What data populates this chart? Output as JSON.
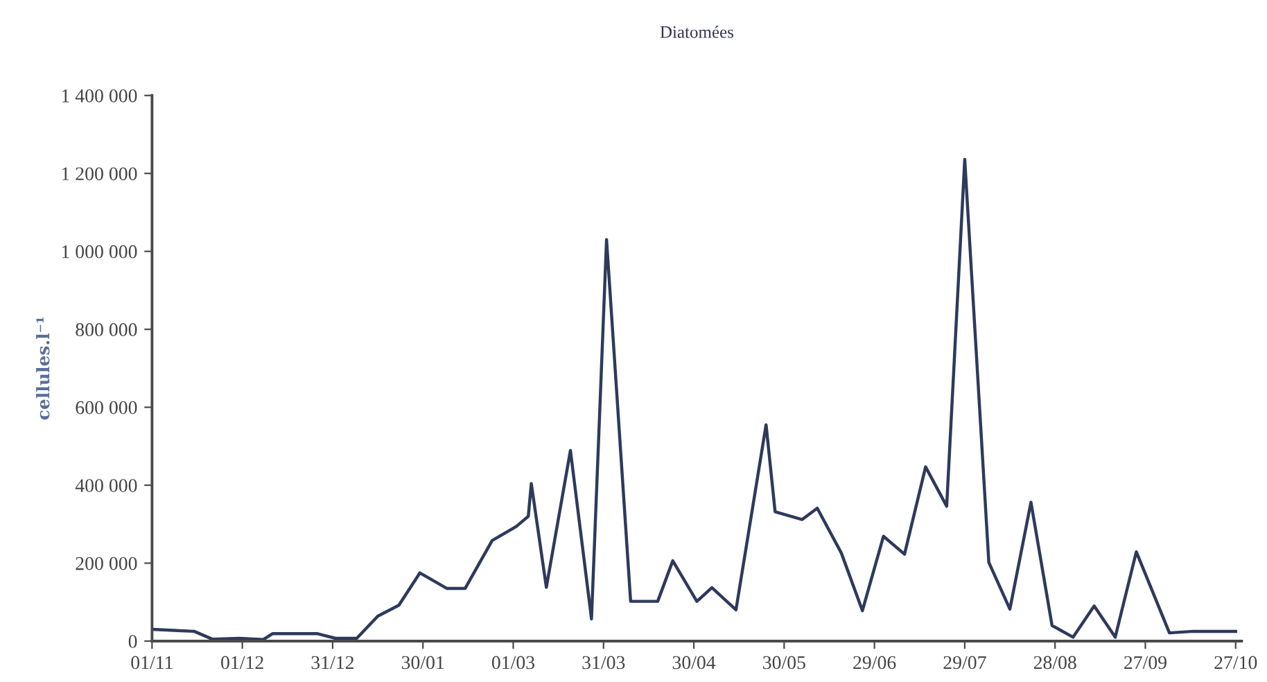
{
  "chart_data": {
    "type": "line",
    "title": "Diatomées",
    "ylabel": "cellules.l⁻¹",
    "x": [
      "2001-11-01",
      "2001-11-15",
      "2001-11-21",
      "2001-11-30",
      "2001-12-08",
      "2001-12-11",
      "2001-12-26",
      "2002-01-01",
      "2002-01-08",
      "2002-01-15",
      "2002-01-22",
      "2002-01-29",
      "2002-02-07",
      "2002-02-13",
      "2002-02-22",
      "2002-03-02",
      "2002-03-06",
      "2002-03-07",
      "2002-03-12",
      "2002-03-20",
      "2002-03-27",
      "2002-04-01",
      "2002-04-09",
      "2002-04-18",
      "2002-04-23",
      "2002-05-01",
      "2002-05-06",
      "2002-05-14",
      "2002-05-24",
      "2002-05-27",
      "2002-06-05",
      "2002-06-10",
      "2002-06-18",
      "2002-06-25",
      "2002-07-02",
      "2002-07-09",
      "2002-07-16",
      "2002-07-23",
      "2002-07-29",
      "2002-08-06",
      "2002-08-13",
      "2002-08-20",
      "2002-08-27",
      "2002-09-03",
      "2002-09-10",
      "2002-09-17",
      "2002-09-24",
      "2002-10-05",
      "2002-10-13",
      "2002-10-27"
    ],
    "series": [
      {
        "color": "#2e3a5c",
        "values": [
          30000,
          25000,
          5000,
          7000,
          4000,
          19000,
          19000,
          7000,
          7000,
          64000,
          92000,
          175000,
          135000,
          135000,
          258000,
          294000,
          320000,
          404000,
          138000,
          489000,
          57000,
          1030000,
          102000,
          102000,
          206000,
          102000,
          137000,
          80000,
          555000,
          332000,
          312000,
          341000,
          226000,
          78000,
          269000,
          223000,
          447000,
          346000,
          1236000,
          202000,
          82000,
          356000,
          40000,
          10000,
          90000,
          10000,
          229000,
          21000,
          25000,
          25000
        ]
      }
    ],
    "xlim": [
      "2001-11-01",
      "2002-10-29"
    ],
    "xticks": [
      {
        "value": "2001-11-01",
        "label": "01/11"
      },
      {
        "value": "2001-12-01",
        "label": "01/12"
      },
      {
        "value": "2001-12-31",
        "label": "31/12"
      },
      {
        "value": "2002-01-30",
        "label": "30/01"
      },
      {
        "value": "2002-03-01",
        "label": "01/03"
      },
      {
        "value": "2002-03-31",
        "label": "31/03"
      },
      {
        "value": "2002-04-30",
        "label": "30/04"
      },
      {
        "value": "2002-05-30",
        "label": "30/05"
      },
      {
        "value": "2002-06-29",
        "label": "29/06"
      },
      {
        "value": "2002-07-29",
        "label": "29/07"
      },
      {
        "value": "2002-08-28",
        "label": "28/08"
      },
      {
        "value": "2002-09-27",
        "label": "27/09"
      },
      {
        "value": "2002-10-27",
        "label": "27/10"
      }
    ],
    "ylim": [
      0,
      1400000
    ],
    "yticks": [
      {
        "value": 0,
        "label": "0"
      },
      {
        "value": 200000,
        "label": "200 000"
      },
      {
        "value": 400000,
        "label": "400 000"
      },
      {
        "value": 600000,
        "label": "600 000"
      },
      {
        "value": 800000,
        "label": "800 000"
      },
      {
        "value": 1000000,
        "label": "1 000 000"
      },
      {
        "value": 1200000,
        "label": "1 200 000"
      },
      {
        "value": 1400000,
        "label": "1 400 000"
      }
    ],
    "grid": false,
    "marker": "none",
    "line_style": "solid"
  }
}
